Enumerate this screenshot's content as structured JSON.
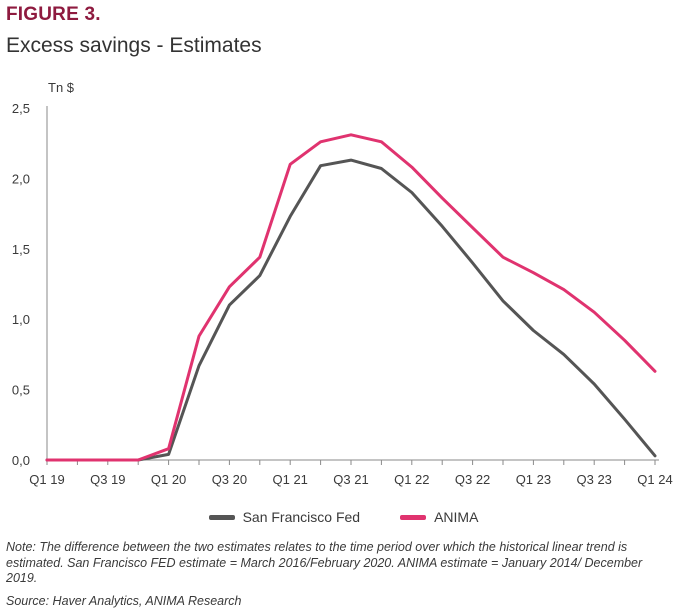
{
  "figure_label": "FIGURE 3.",
  "figure_title": "Excess savings - Estimates",
  "note": "Note: The difference between the two estimates relates to the time period over which the historical linear trend is estimated. San Francisco FED estimate = March 2016/February 2020. ANIMA estimate = January 2014/ December 2019.",
  "source": "Source: Haver Analytics, ANIMA Research",
  "colors": {
    "sf_fed": "#555555",
    "anima": "#e0336f",
    "axis": "#8a8a8a",
    "figure_label": "#8e1a3f"
  },
  "chart_data": {
    "type": "line",
    "ylabel": "Tn $",
    "ylim": [
      0,
      2.5
    ],
    "y_ticks": [
      0,
      0.5,
      1.0,
      1.5,
      2.0,
      2.5
    ],
    "y_tick_labels": [
      "0,0",
      "0,5",
      "1,0",
      "1,5",
      "2,0",
      "2,5"
    ],
    "x": [
      "Q1 19",
      "Q2 19",
      "Q3 19",
      "Q4 19",
      "Q1 20",
      "Q2 20",
      "Q3 20",
      "Q4 20",
      "Q1 21",
      "Q2 21",
      "Q3 21",
      "Q4 21",
      "Q1 22",
      "Q2 22",
      "Q3 22",
      "Q4 22",
      "Q1 23",
      "Q2 23",
      "Q3 23",
      "Q4 23",
      "Q1 24"
    ],
    "x_tick_labels": [
      "Q1 19",
      "Q3 19",
      "Q1 20",
      "Q3 20",
      "Q1 21",
      "Q3 21",
      "Q1 22",
      "Q3 22",
      "Q1 23",
      "Q3 23",
      "Q1 24"
    ],
    "grid": false,
    "legend_position": "bottom",
    "series": [
      {
        "name": "San Francisco Fed",
        "values": [
          0,
          0,
          0,
          0,
          0.04,
          0.67,
          1.1,
          1.31,
          1.73,
          2.09,
          2.13,
          2.07,
          1.9,
          1.66,
          1.4,
          1.13,
          0.92,
          0.75,
          0.54,
          0.29,
          0.03
        ]
      },
      {
        "name": "ANIMA",
        "values": [
          0,
          0,
          0,
          0,
          0.08,
          0.88,
          1.23,
          1.44,
          2.1,
          2.26,
          2.31,
          2.26,
          2.08,
          1.86,
          1.65,
          1.44,
          1.33,
          1.21,
          1.05,
          0.85,
          0.63
        ]
      }
    ]
  }
}
